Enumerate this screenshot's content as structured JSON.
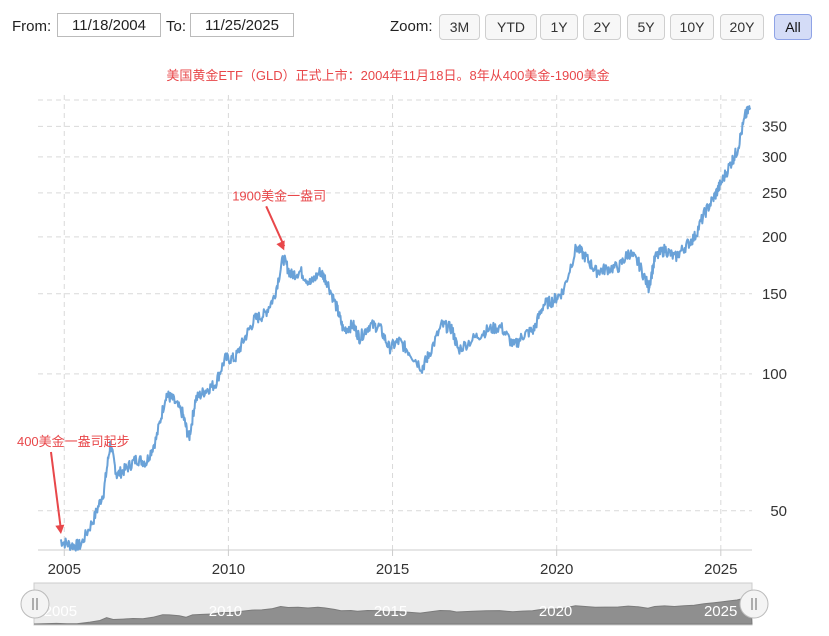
{
  "range_selector": {
    "from_label": "From:",
    "from_value": "11/18/2004",
    "to_label": "To:",
    "to_value": "11/25/2025",
    "zoom_label": "Zoom:",
    "zoom_buttons": [
      "3M",
      "YTD",
      "1Y",
      "2Y",
      "5Y",
      "10Y",
      "20Y",
      "All"
    ],
    "active_zoom": "All"
  },
  "colors": {
    "line": "#6aa2d8",
    "annotation": "#e8474a",
    "grid": "#d9d9d9"
  },
  "navigator": {
    "handle_icon": "grip-icon",
    "tick_labels": [
      "2005",
      "2010",
      "2015",
      "2020",
      "2025"
    ]
  },
  "chart_data": {
    "type": "line",
    "title": "美国黄金ETF（GLD）正式上市：2004年11月18日。8年从400美金-1900美金",
    "xlabel": "",
    "ylabel": "",
    "y_scale": "log",
    "ylim": [
      41,
      400
    ],
    "xlim": [
      2004.2,
      2025.95
    ],
    "x_ticks": [
      "2005",
      "2010",
      "2015",
      "2020",
      "2025"
    ],
    "y_ticks": [
      50,
      100,
      150,
      200,
      250,
      300,
      350
    ],
    "grid": true,
    "legend": "none",
    "annotations": [
      {
        "text": "400美金一盎司起步",
        "x": 2004.9,
        "y": 44
      },
      {
        "text": "1900美金一盎司",
        "x": 2011.7,
        "y": 185
      }
    ],
    "series": [
      {
        "x": [
          2004.88,
          2005.2,
          2005.5,
          2005.9,
          2006.2,
          2006.4,
          2006.6,
          2006.9,
          2007.2,
          2007.5,
          2007.8,
          2008.1,
          2008.3,
          2008.6,
          2008.8,
          2009.0,
          2009.3,
          2009.6,
          2009.9,
          2010.2,
          2010.5,
          2010.8,
          2011.1,
          2011.4,
          2011.67,
          2011.9,
          2012.2,
          2012.5,
          2012.8,
          2013.0,
          2013.3,
          2013.5,
          2013.8,
          2014.0,
          2014.3,
          2014.6,
          2014.9,
          2015.2,
          2015.5,
          2015.9,
          2016.1,
          2016.5,
          2016.8,
          2017.0,
          2017.5,
          2017.9,
          2018.3,
          2018.7,
          2019.0,
          2019.3,
          2019.6,
          2019.9,
          2020.2,
          2020.6,
          2020.9,
          2021.2,
          2021.5,
          2021.9,
          2022.2,
          2022.5,
          2022.8,
          2023.0,
          2023.3,
          2023.6,
          2023.9,
          2024.2,
          2024.5,
          2024.8,
          2025.0,
          2025.3,
          2025.5,
          2025.75,
          2025.9
        ],
        "values": [
          43,
          42,
          42,
          48,
          55,
          70,
          60,
          62,
          65,
          64,
          72,
          90,
          88,
          82,
          72,
          88,
          92,
          95,
          108,
          108,
          120,
          132,
          135,
          148,
          180,
          165,
          168,
          158,
          168,
          160,
          140,
          125,
          128,
          120,
          128,
          127,
          114,
          118,
          112,
          103,
          110,
          128,
          126,
          113,
          120,
          125,
          127,
          115,
          122,
          125,
          142,
          145,
          152,
          190,
          180,
          168,
          170,
          172,
          185,
          175,
          155,
          180,
          188,
          180,
          190,
          200,
          225,
          245,
          262,
          290,
          310,
          370,
          385
        ]
      }
    ]
  }
}
